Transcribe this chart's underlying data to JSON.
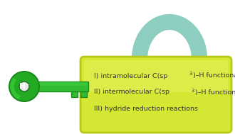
{
  "background_color": "#ffffff",
  "lock_body_color": "#d4e833",
  "lock_body_color2": "#e8f060",
  "lock_body_border": "#b8c818",
  "lock_shackle_color": "#8ecec0",
  "key_circle_color": "#22aa22",
  "key_circle_highlight": "#44dd44",
  "key_shaft_color": "#33bb33",
  "key_label": "H⁻",
  "text_line1_prefix": "I) intramolecular C(sp",
  "text_line1_super": "3",
  "text_line1_suffix": ")–H functionalization",
  "text_line2_prefix": "II) intermolecular C(sp",
  "text_line2_super": "3",
  "text_line2_suffix": ")–H functionalization",
  "text_line3": "III) hydride reduction reactions",
  "font_size": 6.8,
  "text_color": "#333333",
  "fig_width": 3.3,
  "fig_height": 1.89,
  "dpi": 100
}
